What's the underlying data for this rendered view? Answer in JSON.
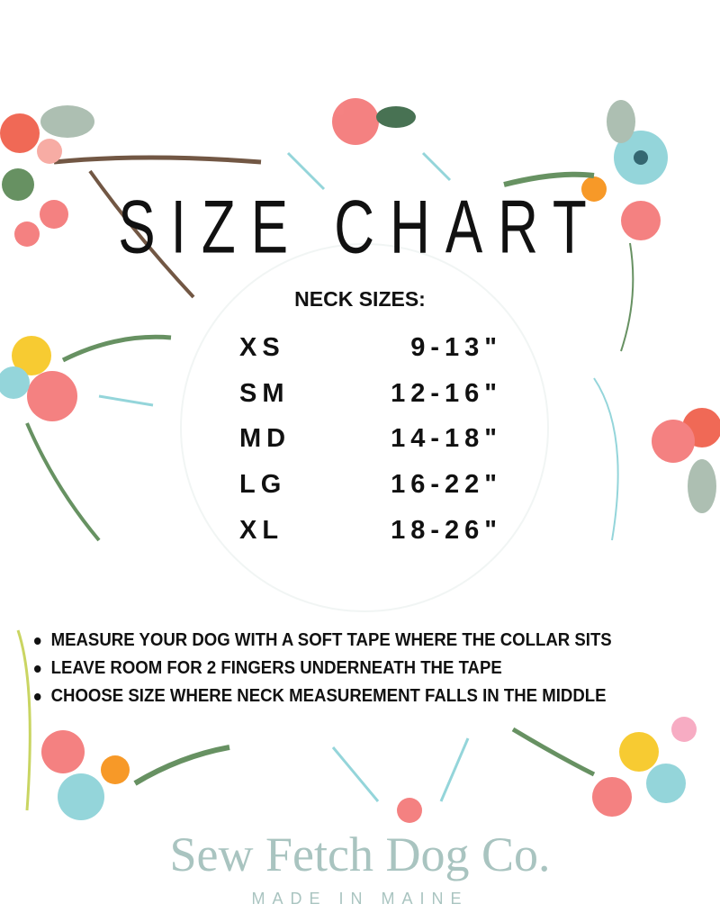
{
  "title": "SIZE CHART",
  "watermark": {
    "name": "Sew Fetch Dog Co.",
    "tagline": "MADE IN MAINE"
  },
  "heading": "NECK SIZES:",
  "sizes": [
    {
      "size": "XS",
      "range": "9-13\""
    },
    {
      "size": "SM",
      "range": "12-16\""
    },
    {
      "size": "MD",
      "range": "14-18\""
    },
    {
      "size": "LG",
      "range": "16-22\""
    },
    {
      "size": "XL",
      "range": "18-26\""
    }
  ],
  "tips": [
    "MEASURE YOUR DOG WITH A SOFT TAPE WHERE THE COLLAR SITS",
    "LEAVE ROOM FOR 2 FINGERS UNDERNEATH THE TAPE",
    "CHOOSE SIZE WHERE NECK MEASUREMENT FALLS IN THE MIDDLE"
  ],
  "colors": {
    "pink": "#f47b7b",
    "coral": "#f0624d",
    "teal": "#8fd3d9",
    "leaf": "#5f8c5a",
    "sage": "#a9bcae",
    "yellow": "#f7c928",
    "branch": "#6b4f3a"
  }
}
